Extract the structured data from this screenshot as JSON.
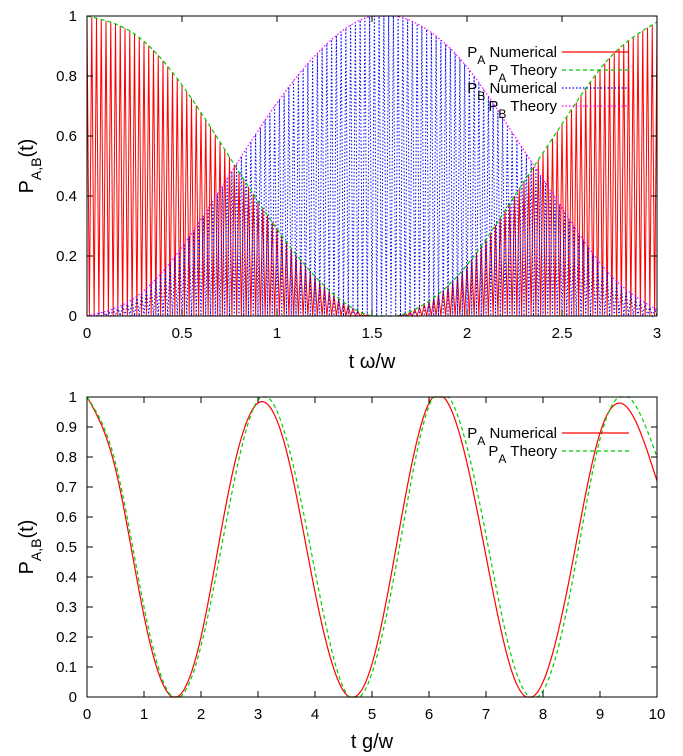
{
  "colors": {
    "pa_numerical": "#ff0000",
    "pa_theory": "#00cc00",
    "pb_numerical": "#0000ff",
    "pb_theory": "#ff00ff"
  },
  "chart_data": [
    {
      "type": "line",
      "xlabel": "t ω/w",
      "ylabel": "P_A,B(t)",
      "xlim": [
        0,
        3
      ],
      "ylim": [
        0,
        1
      ],
      "x_ticks": [
        "0",
        "0.5",
        "1",
        "1.5",
        "2",
        "2.5",
        "3"
      ],
      "y_ticks": [
        "0",
        "0.2",
        "0.4",
        "0.6",
        "0.8",
        "1"
      ],
      "grid": false,
      "legend_position": "top-right",
      "series": [
        {
          "name": "P_A Numerical",
          "style": "solid",
          "oscillation": {
            "cycles": 120,
            "envelope": "P_A Theory"
          },
          "x": [
            0,
            0.5,
            1.0,
            1.5,
            2.0,
            2.5,
            3.0
          ],
          "y": [
            1.0,
            0.77,
            0.29,
            0.0,
            0.17,
            0.64,
            1.0
          ]
        },
        {
          "name": "P_A Theory",
          "style": "dashed",
          "x": [
            0,
            0.25,
            0.5,
            0.75,
            1.0,
            1.25,
            1.5,
            1.75,
            2.0,
            2.25,
            2.5,
            2.75,
            3.0
          ],
          "y": [
            1.0,
            0.94,
            0.77,
            0.53,
            0.29,
            0.1,
            0.0,
            0.03,
            0.17,
            0.4,
            0.64,
            0.86,
            0.98
          ]
        },
        {
          "name": "P_B Numerical",
          "style": "dotted",
          "oscillation": {
            "cycles": 120,
            "envelope": "P_B Theory"
          },
          "x": [
            0,
            0.5,
            1.0,
            1.5,
            2.0,
            2.5,
            3.0
          ],
          "y": [
            0.0,
            0.23,
            0.71,
            1.0,
            0.83,
            0.36,
            0.0
          ]
        },
        {
          "name": "P_B Theory",
          "style": "dotted",
          "x": [
            0,
            0.25,
            0.5,
            0.75,
            1.0,
            1.25,
            1.5,
            1.75,
            2.0,
            2.25,
            2.5,
            2.75,
            3.0
          ],
          "y": [
            0.0,
            0.06,
            0.23,
            0.47,
            0.71,
            0.9,
            1.0,
            0.97,
            0.83,
            0.6,
            0.36,
            0.14,
            0.02
          ]
        }
      ]
    },
    {
      "type": "line",
      "xlabel": "t g/w",
      "ylabel": "P_A,B(t)",
      "xlim": [
        0,
        10
      ],
      "ylim": [
        0,
        1
      ],
      "x_ticks": [
        "0",
        "1",
        "2",
        "3",
        "4",
        "5",
        "6",
        "7",
        "8",
        "9",
        "10"
      ],
      "y_ticks": [
        "0",
        "0.1",
        "0.2",
        "0.3",
        "0.4",
        "0.5",
        "0.6",
        "0.7",
        "0.8",
        "0.9",
        "1"
      ],
      "grid": false,
      "legend_position": "top-right",
      "series": [
        {
          "name": "P_A Numerical",
          "style": "solid",
          "x": [
            0,
            0.5,
            1.0,
            1.5,
            2.0,
            2.5,
            3.0,
            3.5,
            4.0,
            4.5,
            5.0,
            5.5,
            6.0,
            6.5,
            7.0,
            7.5,
            8.0,
            8.5,
            9.0,
            9.5,
            10.0
          ],
          "y": [
            1.0,
            0.76,
            0.27,
            0.0,
            0.2,
            0.7,
            0.98,
            0.82,
            0.35,
            0.02,
            0.11,
            0.58,
            0.98,
            0.9,
            0.47,
            0.06,
            0.05,
            0.43,
            0.88,
            0.96,
            0.72
          ]
        },
        {
          "name": "P_A Theory",
          "style": "dashed",
          "x": [
            0,
            0.5,
            1.0,
            1.5,
            2.0,
            2.5,
            3.0,
            3.5,
            4.0,
            4.5,
            5.0,
            5.5,
            6.0,
            6.5,
            7.0,
            7.5,
            8.0,
            8.5,
            9.0,
            9.5,
            10.0
          ],
          "y": [
            1.0,
            0.78,
            0.3,
            0.0,
            0.17,
            0.64,
            0.99,
            0.86,
            0.42,
            0.03,
            0.08,
            0.52,
            0.97,
            0.94,
            0.54,
            0.1,
            0.02,
            0.37,
            0.86,
            1.0,
            0.8
          ]
        }
      ]
    }
  ]
}
